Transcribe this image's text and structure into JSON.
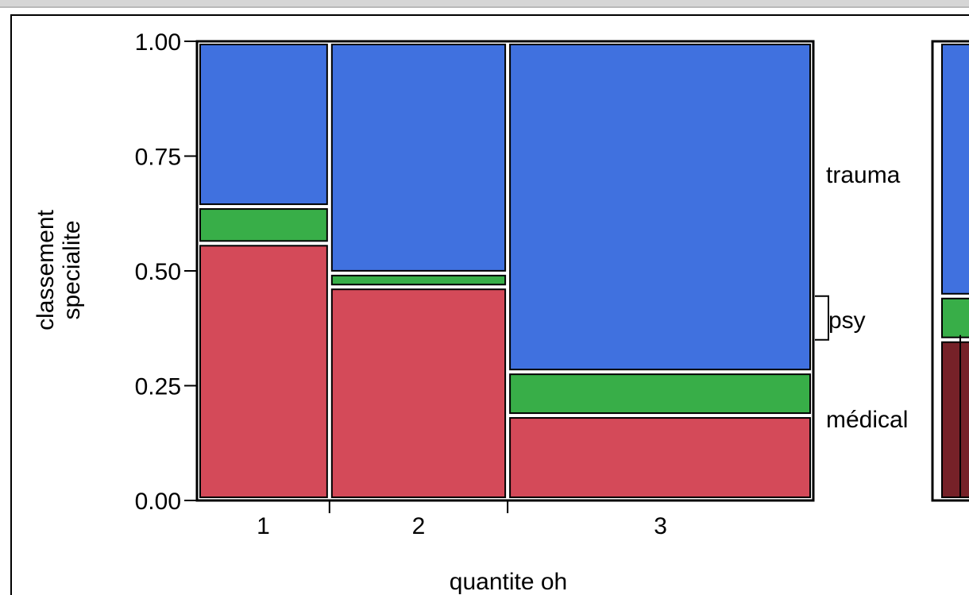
{
  "chart_data": {
    "type": "mosaic",
    "title": "",
    "xlabel": "quantite oh",
    "ylabel_lines": [
      "classement",
      "specialite"
    ],
    "ylim": [
      0,
      1
    ],
    "y_ticks": [
      "0.00",
      "0.25",
      "0.50",
      "0.75",
      "1.00"
    ],
    "categories": [
      "1",
      "2",
      "3"
    ],
    "category_widths": [
      0.215,
      0.289,
      0.496
    ],
    "series": [
      {
        "name": "médical",
        "values": [
          0.56,
          0.465,
          0.185
        ]
      },
      {
        "name": "psy",
        "values": [
          0.08,
          0.03,
          0.095
        ]
      },
      {
        "name": "trauma",
        "values": [
          0.36,
          0.505,
          0.72
        ]
      }
    ],
    "side_labels": [
      "trauma",
      "psy",
      "médical"
    ],
    "marginal_values": [
      0.35,
      0.095,
      0.555
    ],
    "colors": {
      "médical": "#d44a59",
      "psy": "#38ae48",
      "trauma": "#4071df",
      "marginal_médical": "#762128",
      "frame_bg": "#ffffff",
      "topbar": "#d6d6d6"
    }
  }
}
